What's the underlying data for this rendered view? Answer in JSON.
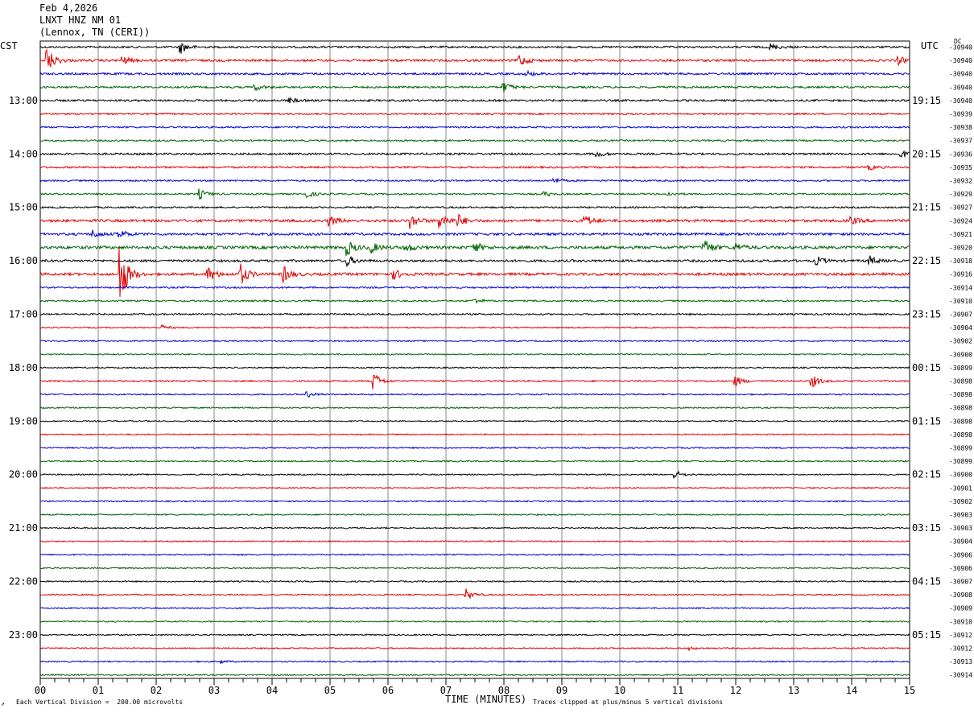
{
  "header": {
    "date": "Feb 4,2026",
    "station": "LNXT HNZ NM 01",
    "location": "(Lennox, TN (CERI))"
  },
  "left_zone": "CST",
  "right_zone": "UTC",
  "dc_label": "DC",
  "footer": {
    "scale_note": "Each Vertical Division =  200.00 microvolts",
    "clip_note": "Traces clipped at plus/minus 5 vertical divisions",
    "corner_mark": "↗"
  },
  "colors": {
    "trace_cycle": [
      "#000000",
      "#e00000",
      "#0000d0",
      "#006400"
    ],
    "grid": "#888888"
  },
  "chart_data": {
    "type": "line",
    "title": "LNXT HNZ NM 01",
    "xlabel": "TIME (MINUTES)",
    "xlim": [
      0,
      15
    ],
    "x_ticks": [
      "00",
      "01",
      "02",
      "03",
      "04",
      "05",
      "06",
      "07",
      "08",
      "09",
      "10",
      "11",
      "12",
      "13",
      "14",
      "15"
    ],
    "lines_per_hour": 4,
    "num_traces": 48,
    "left_hour_labels": [
      "13:00",
      "14:00",
      "15:00",
      "16:00",
      "17:00",
      "18:00",
      "19:00",
      "20:00",
      "21:00",
      "22:00",
      "23:00"
    ],
    "left_hour_first_trace": 4,
    "right_hour_labels": [
      "19:15",
      "20:15",
      "21:15",
      "22:15",
      "23:15",
      "00:15",
      "01:15",
      "02:15",
      "03:15",
      "04:15",
      "05:15"
    ],
    "right_hour_first_trace": 4,
    "dc_offsets": [
      -30940,
      -30940,
      -30940,
      -30940,
      -30940,
      -30939,
      -30938,
      -30937,
      -30936,
      -30935,
      -30932,
      -30929,
      -30927,
      -30924,
      -30921,
      -30920,
      -30918,
      -30916,
      -30914,
      -30910,
      -30907,
      -30904,
      -30902,
      -30900,
      -30899,
      -30898,
      -30898,
      -30898,
      -30898,
      -30898,
      -30899,
      -30899,
      -30900,
      -30901,
      -30902,
      -30903,
      -30903,
      -30904,
      -30906,
      -30906,
      -30907,
      -30908,
      -30909,
      -30910,
      -30912,
      -30912,
      -30913,
      -30914
    ],
    "noise_amplitude": [
      1.2,
      1.4,
      1.3,
      1.2,
      1.2,
      1.0,
      1.0,
      1.0,
      1.2,
      1.1,
      1.0,
      1.0,
      1.0,
      1.6,
      1.5,
      1.8,
      1.4,
      1.6,
      1.0,
      1.0,
      1.0,
      0.8,
      0.8,
      0.8,
      0.8,
      0.9,
      0.8,
      0.8,
      0.8,
      0.8,
      0.8,
      0.8,
      0.8,
      0.8,
      0.8,
      0.8,
      0.8,
      0.8,
      0.8,
      0.8,
      0.8,
      0.8,
      0.8,
      0.8,
      0.8,
      0.8,
      0.8,
      0.8
    ],
    "events": [
      {
        "trace": 0,
        "minute": 2.42,
        "amplitude": 8
      },
      {
        "trace": 0,
        "minute": 12.6,
        "amplitude": 4
      },
      {
        "trace": 1,
        "minute": 0.12,
        "amplitude": 16
      },
      {
        "trace": 1,
        "minute": 1.42,
        "amplitude": 5
      },
      {
        "trace": 1,
        "minute": 8.25,
        "amplitude": 9
      },
      {
        "trace": 1,
        "minute": 14.8,
        "amplitude": 5
      },
      {
        "trace": 2,
        "minute": 8.4,
        "amplitude": 3
      },
      {
        "trace": 3,
        "minute": 3.7,
        "amplitude": 4
      },
      {
        "trace": 3,
        "minute": 8.0,
        "amplitude": 6
      },
      {
        "trace": 4,
        "minute": 4.3,
        "amplitude": 3
      },
      {
        "trace": 8,
        "minute": 9.6,
        "amplitude": 4
      },
      {
        "trace": 8,
        "minute": 14.85,
        "amplitude": 5
      },
      {
        "trace": 9,
        "minute": 14.3,
        "amplitude": 3
      },
      {
        "trace": 10,
        "minute": 8.85,
        "amplitude": 4
      },
      {
        "trace": 11,
        "minute": 2.75,
        "amplitude": 6
      },
      {
        "trace": 11,
        "minute": 4.6,
        "amplitude": 4
      },
      {
        "trace": 11,
        "minute": 8.7,
        "amplitude": 3
      },
      {
        "trace": 11,
        "minute": 10.8,
        "amplitude": 3
      },
      {
        "trace": 13,
        "minute": 5.0,
        "amplitude": 6
      },
      {
        "trace": 13,
        "minute": 6.4,
        "amplitude": 9
      },
      {
        "trace": 13,
        "minute": 6.9,
        "amplitude": 10
      },
      {
        "trace": 13,
        "minute": 7.2,
        "amplitude": 8
      },
      {
        "trace": 13,
        "minute": 9.4,
        "amplitude": 7
      },
      {
        "trace": 13,
        "minute": 14.0,
        "amplitude": 4
      },
      {
        "trace": 14,
        "minute": 0.9,
        "amplitude": 5
      },
      {
        "trace": 14,
        "minute": 1.35,
        "amplitude": 6
      },
      {
        "trace": 15,
        "minute": 5.3,
        "amplitude": 9
      },
      {
        "trace": 15,
        "minute": 5.7,
        "amplitude": 7
      },
      {
        "trace": 15,
        "minute": 6.3,
        "amplitude": 6
      },
      {
        "trace": 15,
        "minute": 7.5,
        "amplitude": 6
      },
      {
        "trace": 15,
        "minute": 11.45,
        "amplitude": 12
      },
      {
        "trace": 15,
        "minute": 12.0,
        "amplitude": 5
      },
      {
        "trace": 16,
        "minute": 5.3,
        "amplitude": 6
      },
      {
        "trace": 16,
        "minute": 13.4,
        "amplitude": 5
      },
      {
        "trace": 16,
        "minute": 14.3,
        "amplitude": 6
      },
      {
        "trace": 17,
        "minute": 1.38,
        "amplitude": 40
      },
      {
        "trace": 17,
        "minute": 2.9,
        "amplitude": 9
      },
      {
        "trace": 17,
        "minute": 3.45,
        "amplitude": 14
      },
      {
        "trace": 17,
        "minute": 4.2,
        "amplitude": 10
      },
      {
        "trace": 17,
        "minute": 6.1,
        "amplitude": 6
      },
      {
        "trace": 19,
        "minute": 7.5,
        "amplitude": 3
      },
      {
        "trace": 21,
        "minute": 2.1,
        "amplitude": 3
      },
      {
        "trace": 25,
        "minute": 5.75,
        "amplitude": 11
      },
      {
        "trace": 25,
        "minute": 12.0,
        "amplitude": 6
      },
      {
        "trace": 25,
        "minute": 13.3,
        "amplitude": 9
      },
      {
        "trace": 26,
        "minute": 4.6,
        "amplitude": 4
      },
      {
        "trace": 32,
        "minute": 10.95,
        "amplitude": 5
      },
      {
        "trace": 41,
        "minute": 7.35,
        "amplitude": 7
      },
      {
        "trace": 45,
        "minute": 11.2,
        "amplitude": 2
      },
      {
        "trace": 46,
        "minute": 3.1,
        "amplitude": 2
      }
    ]
  }
}
